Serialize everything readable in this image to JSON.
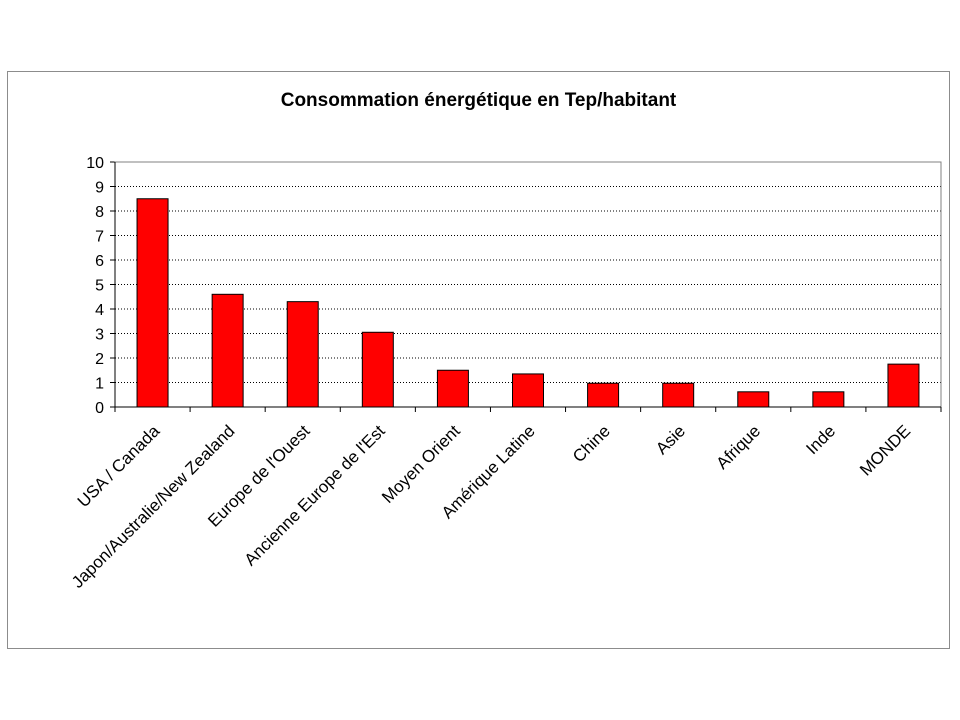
{
  "chart_data": {
    "type": "bar",
    "title": "Consommation énergétique en Tep/habitant",
    "xlabel": "",
    "ylabel": "",
    "categories": [
      "USA / Canada",
      "Japon/Australie/New Zealand",
      "Europe de l'Ouest",
      "Ancienne Europe de l'Est",
      "Moyen Orient",
      "Amérique Latine",
      "Chine",
      "Asie",
      "Afrique",
      "Inde",
      "MONDE"
    ],
    "values": [
      8.5,
      4.6,
      4.3,
      3.05,
      1.5,
      1.35,
      0.97,
      0.97,
      0.62,
      0.62,
      1.75
    ],
    "ylim": [
      0,
      10
    ],
    "yticks": [
      0,
      1,
      2,
      3,
      4,
      5,
      6,
      7,
      8,
      9,
      10
    ],
    "grid": "horizontal dotted",
    "legend": "none",
    "colors": {
      "bar": "#ff0000",
      "bar_border": "#000000",
      "grid": "#000000"
    }
  }
}
